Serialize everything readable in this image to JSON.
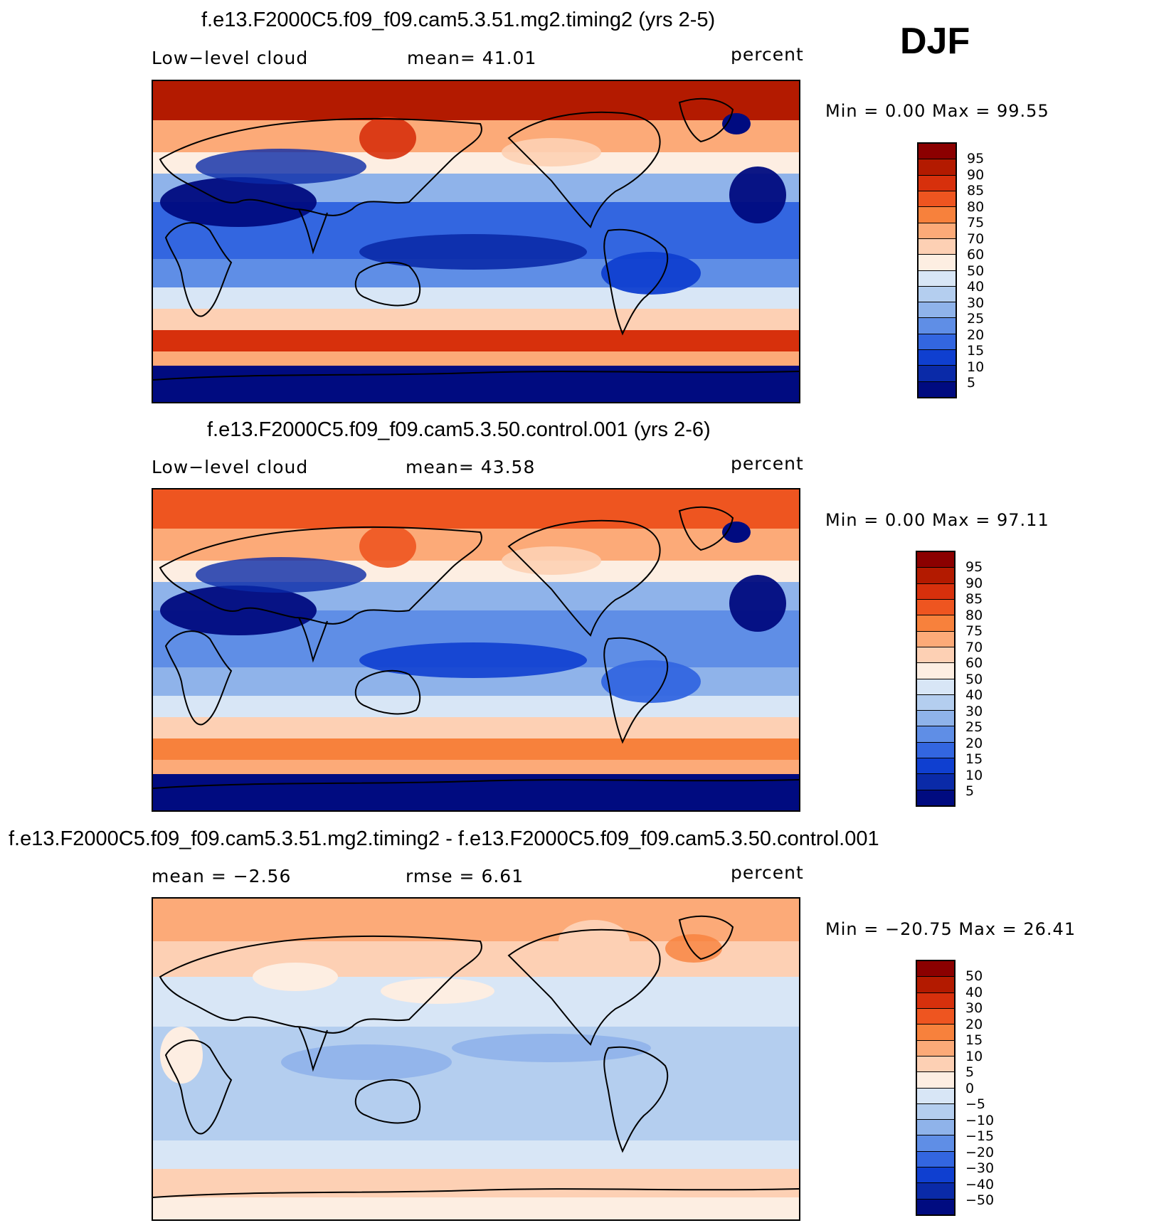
{
  "season": "DJF",
  "panels": [
    {
      "title": "f.e13.F2000C5.f09_f09.cam5.3.51.mg2.timing2 (yrs 2-5)",
      "left_label": "Low−level cloud",
      "center_label": "mean=   41.01",
      "units": "percent",
      "minmax": "Min =     0.00 Max =   99.55",
      "colorbar_ticks": [
        "95",
        "90",
        "85",
        "80",
        "75",
        "70",
        "60",
        "50",
        "40",
        "30",
        "25",
        "20",
        "15",
        "10",
        "5"
      ]
    },
    {
      "title": "f.e13.F2000C5.f09_f09.cam5.3.50.control.001 (yrs 2-6)",
      "left_label": "Low−level cloud",
      "center_label": "mean=   43.58",
      "units": "percent",
      "minmax": "Min =     0.00 Max =   97.11",
      "colorbar_ticks": [
        "95",
        "90",
        "85",
        "80",
        "75",
        "70",
        "60",
        "50",
        "40",
        "30",
        "25",
        "20",
        "15",
        "10",
        "5"
      ]
    },
    {
      "title": "f.e13.F2000C5.f09_f09.cam5.3.51.mg2.timing2 - f.e13.F2000C5.f09_f09.cam5.3.50.control.001",
      "left_label": "mean =   −2.56",
      "center_label": "rmse =    6.61",
      "units": "percent",
      "minmax": "Min = −20.75 Max =   26.41",
      "colorbar_ticks": [
        "50",
        "40",
        "30",
        "20",
        "15",
        "10",
        "5",
        "0",
        "−5",
        "−10",
        "−15",
        "−20",
        "−30",
        "−40",
        "−50"
      ]
    }
  ],
  "colors": {
    "abs_scale": [
      "#8b0000",
      "#b31a00",
      "#d7300c",
      "#ee5520",
      "#f7813c",
      "#fcaa78",
      "#fdd0b4",
      "#fdeee2",
      "#d8e6f6",
      "#b4ceef",
      "#8fb3ea",
      "#5f8ee6",
      "#3366e0",
      "#0f3fd0",
      "#0a2aa8",
      "#000b80"
    ],
    "diff_scale": [
      "#8b0000",
      "#b31a00",
      "#d7300c",
      "#ee5520",
      "#f7813c",
      "#fcaa78",
      "#fdd0b4",
      "#fdeee2",
      "#d8e6f6",
      "#b4ceef",
      "#8fb3ea",
      "#5f8ee6",
      "#3366e0",
      "#0f3fd0",
      "#0a2aa8",
      "#000b80"
    ]
  }
}
